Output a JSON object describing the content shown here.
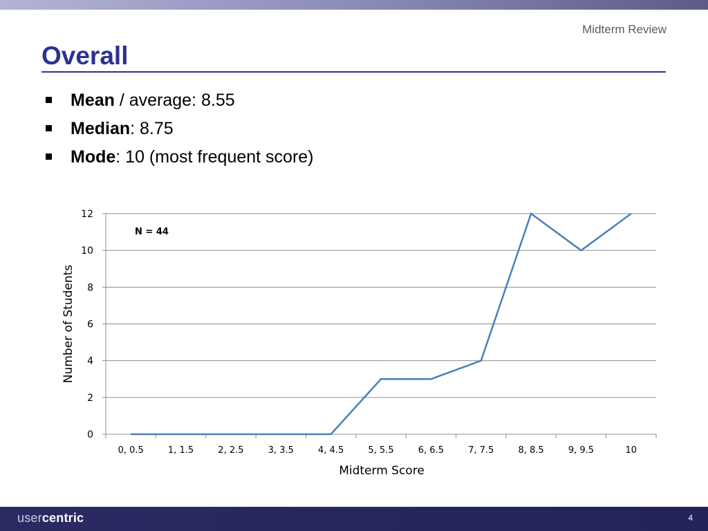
{
  "header": {
    "label": "Midterm Review"
  },
  "slide": {
    "title": "Overall",
    "bullets": [
      {
        "term": "Mean",
        "rest": " / average: 8.55"
      },
      {
        "term": "Median",
        "rest": ": 8.75"
      },
      {
        "term": "Mode",
        "rest": ": 10 (most frequent score)"
      }
    ]
  },
  "chart_data": {
    "type": "line",
    "categories": [
      "0, 0.5",
      "1, 1.5",
      "2, 2.5",
      "3, 3.5",
      "4, 4.5",
      "5, 5.5",
      "6, 6.5",
      "7, 7.5",
      "8, 8.5",
      "9, 9.5",
      "10"
    ],
    "series": [
      {
        "values": [
          0,
          0,
          0,
          0,
          0,
          3,
          3,
          4,
          12,
          10,
          12
        ],
        "color": "#4a7ebb"
      }
    ],
    "xlabel": "Midterm Score",
    "ylabel": "Number of Students",
    "ylim": [
      0,
      12
    ],
    "yticks": [
      0,
      2,
      4,
      6,
      8,
      10,
      12
    ],
    "annotation": "N = 44",
    "grid": true,
    "legend": false
  },
  "footer": {
    "logo_light": "user",
    "logo_bold": "centric",
    "page_number": "4"
  }
}
